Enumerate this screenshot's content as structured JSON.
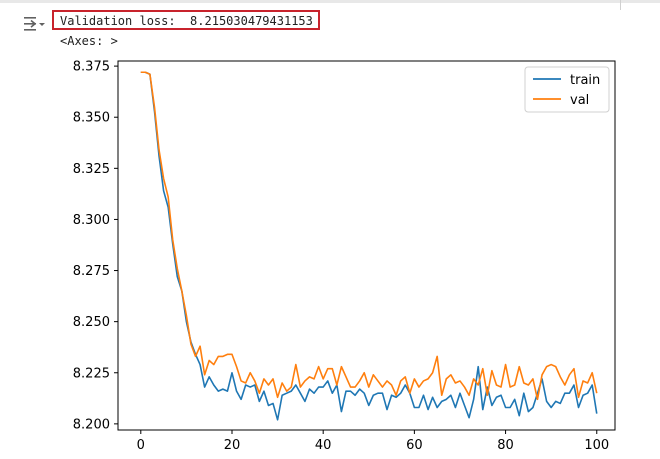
{
  "cell": {
    "toggle_icon": "output-collapse-icon",
    "output_lines": {
      "validation_label": "Validation loss:",
      "validation_value": "8.215030479431153",
      "axes_repr": "<Axes: >"
    },
    "highlight_color": "#c8232c"
  },
  "chart_data": {
    "type": "line",
    "title": "",
    "xlabel": "",
    "ylabel": "",
    "xlim": [
      -5,
      104
    ],
    "ylim": [
      8.197,
      8.3775
    ],
    "x_ticks": [
      0,
      20,
      40,
      60,
      80,
      100
    ],
    "y_ticks": [
      8.2,
      8.225,
      8.25,
      8.275,
      8.3,
      8.325,
      8.35,
      8.375
    ],
    "y_tick_labels": [
      "8.200",
      "8.225",
      "8.250",
      "8.275",
      "8.300",
      "8.325",
      "8.350",
      "8.375"
    ],
    "grid": false,
    "legend_position": "top-right",
    "series": [
      {
        "name": "train",
        "color": "#1f77b4",
        "values": [
          8.372,
          8.372,
          8.371,
          8.353,
          8.331,
          8.314,
          8.306,
          8.288,
          8.272,
          8.265,
          8.25,
          8.24,
          8.234,
          8.229,
          8.218,
          8.223,
          8.219,
          8.216,
          8.217,
          8.216,
          8.225,
          8.216,
          8.212,
          8.219,
          8.218,
          8.219,
          8.211,
          8.216,
          8.209,
          8.21,
          8.202,
          8.214,
          8.215,
          8.216,
          8.219,
          8.215,
          8.211,
          8.217,
          8.215,
          8.218,
          8.218,
          8.221,
          8.215,
          8.219,
          8.206,
          8.216,
          8.216,
          8.214,
          8.217,
          8.215,
          8.209,
          8.214,
          8.215,
          8.215,
          8.207,
          8.214,
          8.213,
          8.215,
          8.219,
          8.215,
          8.208,
          8.208,
          8.214,
          8.207,
          8.213,
          8.208,
          8.211,
          8.212,
          8.214,
          8.208,
          8.215,
          8.209,
          8.203,
          8.212,
          8.228,
          8.207,
          8.218,
          8.209,
          8.213,
          8.214,
          8.208,
          8.208,
          8.212,
          8.204,
          8.215,
          8.206,
          8.208,
          8.215,
          8.222,
          8.211,
          8.208,
          8.211,
          8.21,
          8.215,
          8.215,
          8.219,
          8.208,
          8.214,
          8.215,
          8.219,
          8.205
        ]
      },
      {
        "name": "val",
        "color": "#ff7f0e",
        "values": [
          8.372,
          8.372,
          8.371,
          8.355,
          8.334,
          8.32,
          8.311,
          8.29,
          8.276,
          8.265,
          8.253,
          8.239,
          8.233,
          8.238,
          8.224,
          8.231,
          8.229,
          8.233,
          8.233,
          8.234,
          8.234,
          8.228,
          8.221,
          8.22,
          8.225,
          8.221,
          8.215,
          8.222,
          8.219,
          8.222,
          8.213,
          8.22,
          8.216,
          8.218,
          8.229,
          8.218,
          8.221,
          8.223,
          8.222,
          8.228,
          8.222,
          8.227,
          8.227,
          8.219,
          8.228,
          8.223,
          8.218,
          8.218,
          8.221,
          8.225,
          8.218,
          8.224,
          8.221,
          8.218,
          8.221,
          8.219,
          8.214,
          8.221,
          8.223,
          8.215,
          8.222,
          8.218,
          8.221,
          8.222,
          8.225,
          8.233,
          8.214,
          8.222,
          8.224,
          8.22,
          8.221,
          8.218,
          8.214,
          8.222,
          8.219,
          8.227,
          8.214,
          8.226,
          8.219,
          8.218,
          8.229,
          8.218,
          8.219,
          8.228,
          8.22,
          8.219,
          8.222,
          8.212,
          8.224,
          8.228,
          8.229,
          8.228,
          8.223,
          8.219,
          8.224,
          8.227,
          8.213,
          8.221,
          8.22,
          8.225,
          8.215
        ]
      }
    ]
  }
}
